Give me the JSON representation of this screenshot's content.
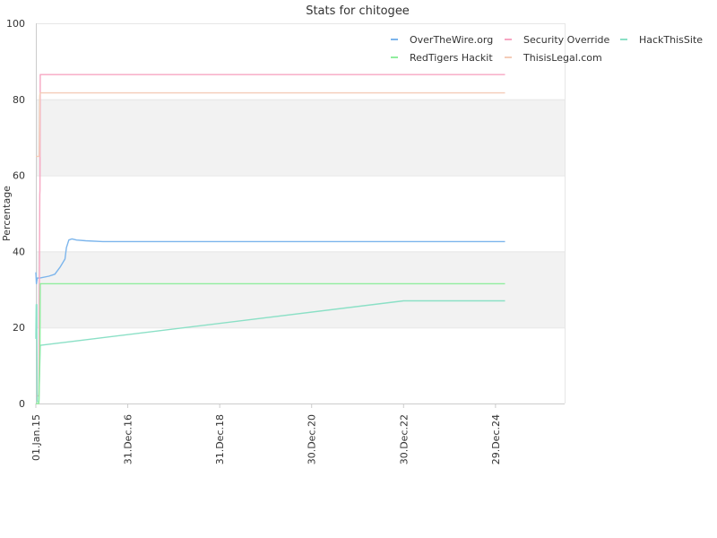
{
  "chart_data": {
    "type": "line",
    "title": "Stats for chitogee",
    "xlabel": "",
    "ylabel": "Percentage",
    "ylim": [
      0,
      100
    ],
    "xlim": [
      "2015-01-01",
      "2026-07-01"
    ],
    "y_ticks": [
      0,
      20,
      40,
      60,
      80,
      100
    ],
    "x_ticks": [
      {
        "date": "2015-01-01",
        "label": "01.Jan.15"
      },
      {
        "date": "2016-12-31",
        "label": "31.Dec.16"
      },
      {
        "date": "2018-12-31",
        "label": "31.Dec.18"
      },
      {
        "date": "2020-12-30",
        "label": "30.Dec.20"
      },
      {
        "date": "2022-12-30",
        "label": "30.Dec.22"
      },
      {
        "date": "2024-12-29",
        "label": "29.Dec.24"
      }
    ],
    "grid": true,
    "bands": [
      [
        20,
        40
      ],
      [
        60,
        80
      ]
    ],
    "band_color": "#f2f2f2",
    "legend_position": "top-right",
    "series": [
      {
        "name": "OverTheWire.org",
        "color": "#7cb5ec",
        "x": [
          "2015-01-01",
          "2015-01-05",
          "2015-01-12",
          "2015-02-01",
          "2015-04-15",
          "2015-06-01",
          "2015-07-15",
          "2015-08-20",
          "2015-09-01",
          "2015-09-20",
          "2015-10-15",
          "2015-11-20",
          "2016-02-01",
          "2016-06-15",
          "2025-03-15"
        ],
        "y": [
          34.5,
          31.5,
          33.0,
          33.0,
          33.5,
          34.0,
          36.0,
          38.0,
          41.0,
          43.0,
          43.3,
          43.0,
          42.8,
          42.6,
          42.6
        ]
      },
      {
        "name": "Security Override",
        "color": "#f7a6c2",
        "x": [
          "2015-01-01",
          "2015-01-20",
          "2015-01-25",
          "2015-02-01",
          "2015-02-03",
          "2015-02-05",
          "2025-03-15"
        ],
        "y": [
          2.0,
          2.0,
          2.0,
          55.0,
          56.0,
          86.5,
          86.5
        ]
      },
      {
        "name": "HackThisSite",
        "color": "#8be0c6",
        "x": [
          "2015-01-01",
          "2015-01-04",
          "2015-01-08",
          "2015-01-12",
          "2015-01-25",
          "2015-02-05",
          "2015-02-08",
          "2022-12-30",
          "2025-03-15"
        ],
        "y": [
          17.0,
          26.0,
          26.0,
          0.5,
          0.5,
          15.0,
          15.3,
          27.0,
          27.0
        ]
      },
      {
        "name": "RedTigers Hackit",
        "color": "#90ed9e",
        "x": [
          "2015-01-01",
          "2015-01-25",
          "2015-02-03",
          "2015-02-05",
          "2025-03-15"
        ],
        "y": [
          0.0,
          0.0,
          15.0,
          31.5,
          31.5
        ]
      },
      {
        "name": "ThisisLegal.com",
        "color": "#f4ccb8",
        "x": [
          "2015-01-01",
          "2015-01-28",
          "2015-02-01",
          "2015-02-04",
          "2025-03-15"
        ],
        "y": [
          65.0,
          65.0,
          81.0,
          81.7,
          81.7
        ]
      }
    ]
  }
}
